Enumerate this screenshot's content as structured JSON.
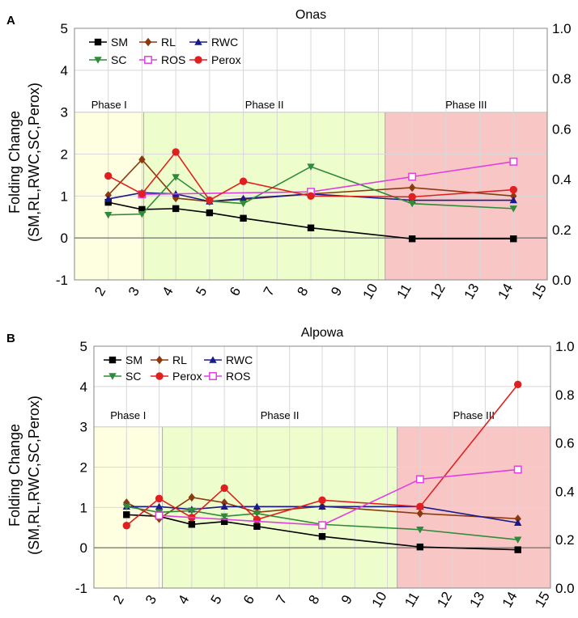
{
  "chart_data": [
    {
      "type": "line",
      "panel_label": "A",
      "title": "Onas",
      "ylabel_line1": "Folding Change",
      "ylabel_line2": "(SM,RL,RWC,SC,Perox)",
      "xlim": [
        1,
        15
      ],
      "ylim": [
        -1,
        5
      ],
      "y2lim": [
        0.0,
        1.0
      ],
      "x_ticks": [
        "2",
        "3",
        "4",
        "5",
        "6",
        "7",
        "8",
        "9",
        "10",
        "11",
        "12",
        "13",
        "14",
        "15"
      ],
      "y_ticks": [
        "-1",
        "0",
        "1",
        "2",
        "3",
        "4",
        "5"
      ],
      "y2_ticks": [
        "0.0",
        "0.2",
        "0.4",
        "0.6",
        "0.8",
        "1.0"
      ],
      "phases": [
        {
          "label": "Phase I",
          "x_start": 1,
          "x_end": 3.05,
          "y_top": 3,
          "color": "#fefee0"
        },
        {
          "label": "Phase II",
          "x_start": 3.05,
          "x_end": 10.2,
          "y_top": 3,
          "color": "#eefdcc"
        },
        {
          "label": "Phase III",
          "x_start": 10.2,
          "x_end": 15,
          "y_top": 3,
          "color": "#f9c6c6"
        }
      ],
      "legend": [
        {
          "name": "SM",
          "color": "#000000",
          "marker": "square"
        },
        {
          "name": "RL",
          "color": "#8b3a0f",
          "marker": "diamond"
        },
        {
          "name": "RWC",
          "color": "#1a1a8c",
          "marker": "triangle"
        },
        {
          "name": "SC",
          "color": "#2e8b3a",
          "marker": "triangle-down"
        },
        {
          "name": "ROS",
          "color": "#e040e0",
          "marker": "open-square"
        },
        {
          "name": "Perox",
          "color": "#e02020",
          "marker": "circle"
        }
      ],
      "series": [
        {
          "name": "SM",
          "color": "#000000",
          "marker": "square",
          "axis": "left",
          "x": [
            2,
            3,
            4,
            5,
            6,
            8,
            11,
            14
          ],
          "values": [
            0.85,
            0.68,
            0.7,
            0.6,
            0.47,
            0.24,
            -0.02,
            -0.02
          ]
        },
        {
          "name": "RL",
          "color": "#8b3a0f",
          "marker": "diamond",
          "axis": "left",
          "x": [
            2,
            3,
            4,
            5,
            6,
            8,
            11,
            14
          ],
          "values": [
            1.02,
            1.87,
            0.95,
            0.87,
            0.92,
            1.05,
            1.2,
            1.0
          ]
        },
        {
          "name": "RWC",
          "color": "#1a1a8c",
          "marker": "triangle",
          "axis": "left",
          "x": [
            2,
            3,
            4,
            5,
            6,
            8,
            11,
            14
          ],
          "values": [
            0.93,
            1.08,
            1.05,
            0.87,
            0.94,
            1.05,
            0.9,
            0.9
          ]
        },
        {
          "name": "SC",
          "color": "#2e8b3a",
          "marker": "triangle-down",
          "axis": "left",
          "x": [
            2,
            3,
            4,
            5,
            6,
            8,
            11,
            14
          ],
          "values": [
            0.55,
            0.57,
            1.45,
            0.88,
            0.82,
            1.7,
            0.82,
            0.7
          ]
        },
        {
          "name": "ROS",
          "color": "#e040e0",
          "marker": "open-square",
          "axis": "right",
          "x": [
            3,
            8,
            11,
            14
          ],
          "values": [
            0.34,
            0.35,
            0.41,
            0.47
          ]
        },
        {
          "name": "Perox",
          "color": "#e02020",
          "marker": "circle",
          "axis": "left",
          "x": [
            2,
            3,
            4,
            5,
            6,
            8,
            11,
            14
          ],
          "values": [
            1.48,
            1.05,
            2.05,
            0.9,
            1.35,
            1.0,
            0.98,
            1.15
          ]
        }
      ]
    },
    {
      "type": "line",
      "panel_label": "B",
      "title": "Alpowa",
      "ylabel_line1": "Folding Change",
      "ylabel_line2": "(SM,RL,RWC,SC,Perox)",
      "xlim": [
        1,
        15
      ],
      "ylim": [
        -1,
        5
      ],
      "y2lim": [
        0.0,
        1.0
      ],
      "x_ticks": [
        "2",
        "3",
        "4",
        "5",
        "6",
        "7",
        "8",
        "9",
        "10",
        "11",
        "12",
        "13",
        "14",
        "15"
      ],
      "y_ticks": [
        "-1",
        "0",
        "1",
        "2",
        "3",
        "4",
        "5"
      ],
      "y2_ticks": [
        "0.0",
        "0.2",
        "0.4",
        "0.6",
        "0.8",
        "1.0"
      ],
      "phases": [
        {
          "label": "Phase I",
          "x_start": 1,
          "x_end": 3.1,
          "y_top": 3,
          "color": "#fefee0"
        },
        {
          "label": "Phase II",
          "x_start": 3.1,
          "x_end": 10.3,
          "y_top": 3,
          "color": "#eefdcc"
        },
        {
          "label": "Phase III",
          "x_start": 10.3,
          "x_end": 15,
          "y_top": 3,
          "color": "#f9c6c6"
        }
      ],
      "legend": [
        {
          "name": "SM",
          "color": "#000000",
          "marker": "square"
        },
        {
          "name": "RL",
          "color": "#8b3a0f",
          "marker": "diamond"
        },
        {
          "name": "RWC",
          "color": "#1a1a8c",
          "marker": "triangle"
        },
        {
          "name": "SC",
          "color": "#2e8b3a",
          "marker": "triangle-down"
        },
        {
          "name": "Perox",
          "color": "#e02020",
          "marker": "circle"
        },
        {
          "name": "ROS",
          "color": "#e040e0",
          "marker": "open-square"
        }
      ],
      "series": [
        {
          "name": "SM",
          "color": "#000000",
          "marker": "square",
          "axis": "left",
          "x": [
            2,
            3,
            4,
            5,
            6,
            8,
            11,
            14
          ],
          "values": [
            0.82,
            0.78,
            0.58,
            0.65,
            0.53,
            0.28,
            0.02,
            -0.05
          ]
        },
        {
          "name": "RL",
          "color": "#8b3a0f",
          "marker": "diamond",
          "axis": "left",
          "x": [
            2,
            3,
            4,
            5,
            6,
            8,
            11,
            14
          ],
          "values": [
            1.12,
            0.72,
            1.25,
            1.12,
            0.88,
            1.03,
            0.85,
            0.72
          ]
        },
        {
          "name": "RWC",
          "color": "#1a1a8c",
          "marker": "triangle",
          "axis": "left",
          "x": [
            2,
            3,
            4,
            5,
            6,
            8,
            11,
            14
          ],
          "values": [
            1.02,
            1.02,
            0.95,
            1.02,
            1.02,
            1.02,
            1.02,
            0.62
          ]
        },
        {
          "name": "SC",
          "color": "#2e8b3a",
          "marker": "triangle-down",
          "axis": "left",
          "x": [
            2,
            3,
            4,
            5,
            6,
            8,
            11,
            14
          ],
          "values": [
            1.02,
            0.88,
            0.92,
            0.78,
            0.85,
            0.58,
            0.45,
            0.2
          ]
        },
        {
          "name": "Perox",
          "color": "#e02020",
          "marker": "circle",
          "axis": "left",
          "x": [
            2,
            3,
            4,
            5,
            6,
            8,
            11,
            14
          ],
          "values": [
            0.55,
            1.22,
            0.75,
            1.48,
            0.7,
            1.18,
            1.02,
            4.05
          ]
        },
        {
          "name": "ROS",
          "color": "#e040e0",
          "marker": "open-square",
          "axis": "right",
          "x": [
            3,
            8,
            11,
            14
          ],
          "values": [
            0.3,
            0.26,
            0.45,
            0.49
          ]
        }
      ]
    }
  ]
}
